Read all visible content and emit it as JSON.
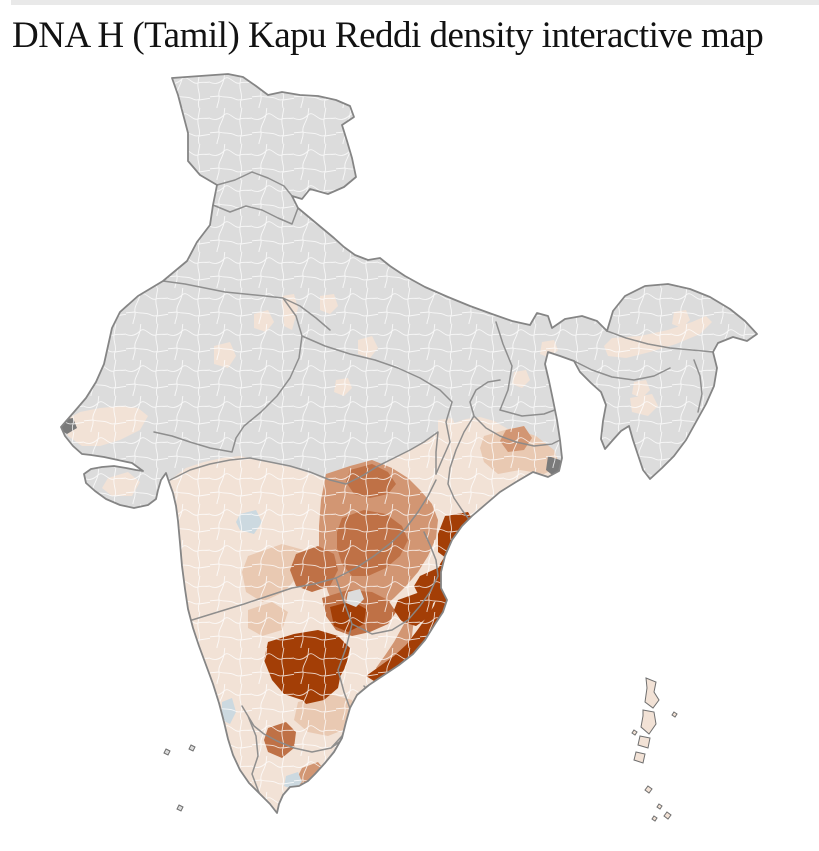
{
  "title": "DNA H (Tamil) Kapu Reddi density interactive map",
  "map": {
    "type": "choropleth",
    "subject": "Kapu Reddi (Tamil) DNA H density by district, India",
    "palette": {
      "no_data": "#dcdcdc",
      "level_1": "#f2e2d6",
      "level_2": "#e9c9b2",
      "level_3": "#d29673",
      "level_4": "#bf7146",
      "level_5": "#a33e06",
      "level_blue": "#ccd9e0",
      "feature_dark": "#7a7a7a",
      "district_border": "#ffffff",
      "state_border": "#8a8a8a",
      "outline": "#858585",
      "island_stroke": "#6f6f6f",
      "top_divider": "#e9e9e9",
      "title_color": "#121212"
    },
    "density_scale": [
      "no_data",
      "level_1",
      "level_2",
      "level_3",
      "level_4",
      "level_5"
    ],
    "regions": [
      {
        "name": "india-base",
        "label": "India — districts with no data",
        "level": "no_data"
      },
      {
        "name": "peninsula",
        "label": "Peninsular India — low density",
        "level": "level_1"
      },
      {
        "name": "kutch",
        "label": "Kutch — low density",
        "level": "level_1"
      },
      {
        "name": "saurashtra-district",
        "label": "Central Saurashtra district",
        "level": "level_1"
      },
      {
        "name": "south-gujarat-districts",
        "label": "South Gujarat districts",
        "level": "level_1"
      },
      {
        "name": "north-plains-districts",
        "label": "Scattered northern districts",
        "level": "level_1"
      },
      {
        "name": "assam-valley",
        "label": "Assam valley districts",
        "level": "level_1"
      },
      {
        "name": "west-bengal-districts",
        "label": "South West Bengal districts",
        "level": "level_1"
      },
      {
        "name": "odisha-belt",
        "label": "Odisha belt — low-mid density",
        "level": "level_2"
      },
      {
        "name": "west-odisha-district",
        "label": "West Odisha district",
        "level": "level_3"
      },
      {
        "name": "north-karnataka-belt",
        "label": "North Karnataka belt",
        "level": "level_2"
      },
      {
        "name": "chittoor-belt",
        "label": "Chittoor belt",
        "level": "level_2"
      },
      {
        "name": "telangana",
        "label": "Telangana — mid density",
        "level": "level_3"
      },
      {
        "name": "adilabad",
        "label": "North Telangana district",
        "level": "level_4"
      },
      {
        "name": "telangana-core",
        "label": "Central Telangana — high density",
        "level": "level_4"
      },
      {
        "name": "gulbarga-bidar",
        "label": "NE Karnataka districts",
        "level": "level_4"
      },
      {
        "name": "kurnool-belt",
        "label": "Kurnool belt — high density",
        "level": "level_4"
      },
      {
        "name": "nellore-coast",
        "label": "Nellore coastal strip",
        "level": "level_3"
      },
      {
        "name": "thanjavur-delta",
        "label": "Kaveri delta district",
        "level": "level_3"
      },
      {
        "name": "salem",
        "label": "Salem district",
        "level": "level_4"
      },
      {
        "name": "coastal-andhra",
        "label": "Coastal Andhra (Godavari) — highest density",
        "level": "level_5"
      },
      {
        "name": "krishna-guntur",
        "label": "Krishna–Guntur — highest density",
        "level": "level_5"
      },
      {
        "name": "rayalaseema",
        "label": "Rayalaseema cluster — highest density",
        "level": "level_5"
      },
      {
        "name": "hyderabad",
        "label": "Hyderabad — no data",
        "level": "no_data"
      },
      {
        "name": "maharashtra-blue-district",
        "label": "West Maharashtra district",
        "level": "level_blue"
      },
      {
        "name": "kerala-blue-district",
        "label": "Kerala district",
        "level": "level_blue"
      },
      {
        "name": "puducherry-blue-district",
        "label": "Puducherry area district",
        "level": "level_blue"
      },
      {
        "name": "sundarbans",
        "label": "Sundarbans",
        "level": "feature_dark"
      },
      {
        "name": "balasore-coast",
        "label": "Bengal coast flats",
        "level": "feature_dark"
      },
      {
        "name": "sir-creek",
        "label": "Sir Creek flats",
        "level": "feature_dark"
      },
      {
        "name": "andaman-nicobar",
        "label": "Andaman and Nicobar Islands",
        "level": "level_1"
      },
      {
        "name": "lakshadweep",
        "label": "Lakshadweep",
        "level": "no_data"
      }
    ]
  }
}
